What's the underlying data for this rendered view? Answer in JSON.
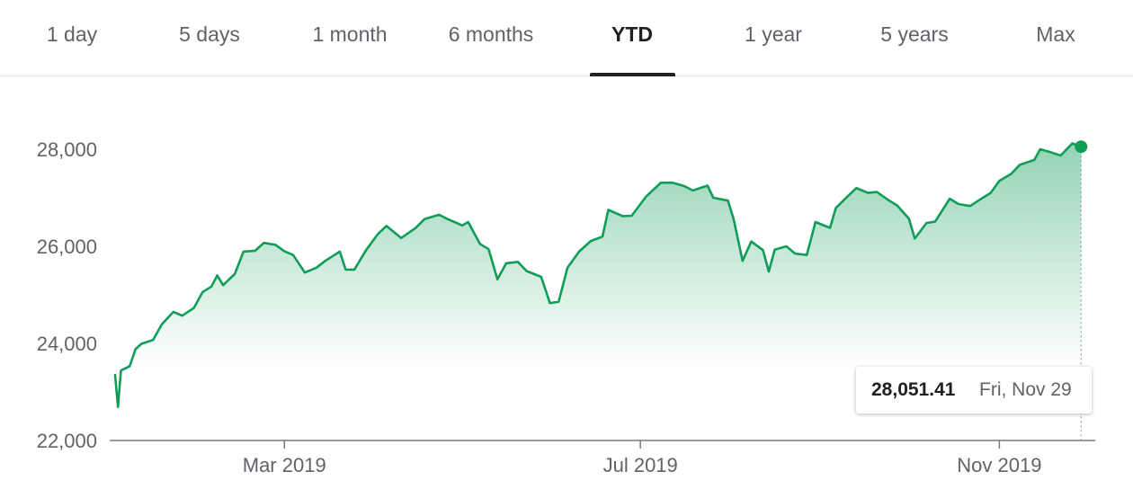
{
  "tabs": [
    {
      "label": "1 day",
      "active": false
    },
    {
      "label": "5 days",
      "active": false
    },
    {
      "label": "1 month",
      "active": false
    },
    {
      "label": "6 months",
      "active": false
    },
    {
      "label": "YTD",
      "active": true
    },
    {
      "label": "1 year",
      "active": false
    },
    {
      "label": "5 years",
      "active": false
    },
    {
      "label": "Max",
      "active": false
    }
  ],
  "tooltip": {
    "value": "28,051.41",
    "date": "Fri, Nov 29"
  },
  "colors": {
    "line": "#109d58",
    "fill": "#109d58",
    "axis": "#5f6368",
    "text": "#5f6368"
  },
  "chart_data": {
    "type": "area",
    "title": "",
    "xlabel": "",
    "ylabel": "",
    "ylim": [
      22000,
      28600
    ],
    "xlim": [
      "2019-01-02",
      "2019-12-02"
    ],
    "grid": false,
    "y_ticks": [
      {
        "value": 22000,
        "label": "22,000"
      },
      {
        "value": 24000,
        "label": "24,000"
      },
      {
        "value": 26000,
        "label": "26,000"
      },
      {
        "value": 28000,
        "label": "28,000"
      }
    ],
    "x_ticks": [
      {
        "date": "2019-03-01",
        "label": "Mar 2019"
      },
      {
        "date": "2019-07-01",
        "label": "Jul 2019"
      },
      {
        "date": "2019-11-01",
        "label": "Nov 2019"
      }
    ],
    "series": [
      {
        "x": [
          "2019-01-02",
          "2019-01-03",
          "2019-01-04",
          "2019-01-07",
          "2019-01-09",
          "2019-01-11",
          "2019-01-15",
          "2019-01-18",
          "2019-01-22",
          "2019-01-25",
          "2019-01-29",
          "2019-02-01",
          "2019-02-04",
          "2019-02-06",
          "2019-02-08",
          "2019-02-12",
          "2019-02-15",
          "2019-02-19",
          "2019-02-22",
          "2019-02-26",
          "2019-03-01",
          "2019-03-04",
          "2019-03-08",
          "2019-03-12",
          "2019-03-15",
          "2019-03-20",
          "2019-03-22",
          "2019-03-25",
          "2019-03-29",
          "2019-04-02",
          "2019-04-05",
          "2019-04-10",
          "2019-04-15",
          "2019-04-18",
          "2019-04-23",
          "2019-04-26",
          "2019-05-01",
          "2019-05-03",
          "2019-05-07",
          "2019-05-10",
          "2019-05-13",
          "2019-05-16",
          "2019-05-20",
          "2019-05-23",
          "2019-05-28",
          "2019-05-31",
          "2019-06-03",
          "2019-06-06",
          "2019-06-10",
          "2019-06-14",
          "2019-06-18",
          "2019-06-20",
          "2019-06-25",
          "2019-06-28",
          "2019-07-03",
          "2019-07-08",
          "2019-07-12",
          "2019-07-16",
          "2019-07-19",
          "2019-07-24",
          "2019-07-26",
          "2019-07-31",
          "2019-08-02",
          "2019-08-05",
          "2019-08-08",
          "2019-08-12",
          "2019-08-14",
          "2019-08-16",
          "2019-08-20",
          "2019-08-23",
          "2019-08-27",
          "2019-08-30",
          "2019-09-04",
          "2019-09-06",
          "2019-09-10",
          "2019-09-13",
          "2019-09-17",
          "2019-09-20",
          "2019-09-24",
          "2019-09-27",
          "2019-10-01",
          "2019-10-03",
          "2019-10-07",
          "2019-10-10",
          "2019-10-15",
          "2019-10-18",
          "2019-10-22",
          "2019-10-25",
          "2019-10-29",
          "2019-11-01",
          "2019-11-05",
          "2019-11-08",
          "2019-11-13",
          "2019-11-15",
          "2019-11-19",
          "2019-11-22",
          "2019-11-26",
          "2019-11-29"
        ],
        "values": [
          23350,
          22690,
          23440,
          23530,
          23880,
          23990,
          24070,
          24390,
          24650,
          24570,
          24730,
          25060,
          25170,
          25400,
          25200,
          25430,
          25890,
          25910,
          26070,
          26030,
          25900,
          25820,
          25460,
          25560,
          25700,
          25890,
          25520,
          25520,
          25920,
          26250,
          26420,
          26170,
          26380,
          26560,
          26650,
          26560,
          26430,
          26500,
          26050,
          25940,
          25320,
          25650,
          25680,
          25490,
          25370,
          24830,
          24860,
          25560,
          25890,
          26110,
          26200,
          26750,
          26620,
          26630,
          27030,
          27310,
          27310,
          27240,
          27150,
          27250,
          27000,
          26940,
          26550,
          25700,
          26100,
          25920,
          25480,
          25930,
          26000,
          25850,
          25820,
          26500,
          26380,
          26790,
          27030,
          27200,
          27100,
          27120,
          26950,
          26840,
          26570,
          26160,
          26480,
          26510,
          26980,
          26870,
          26830,
          26950,
          27100,
          27350,
          27490,
          27680,
          27780,
          28000,
          27930,
          27870,
          28120,
          28051.41
        ]
      }
    ]
  }
}
